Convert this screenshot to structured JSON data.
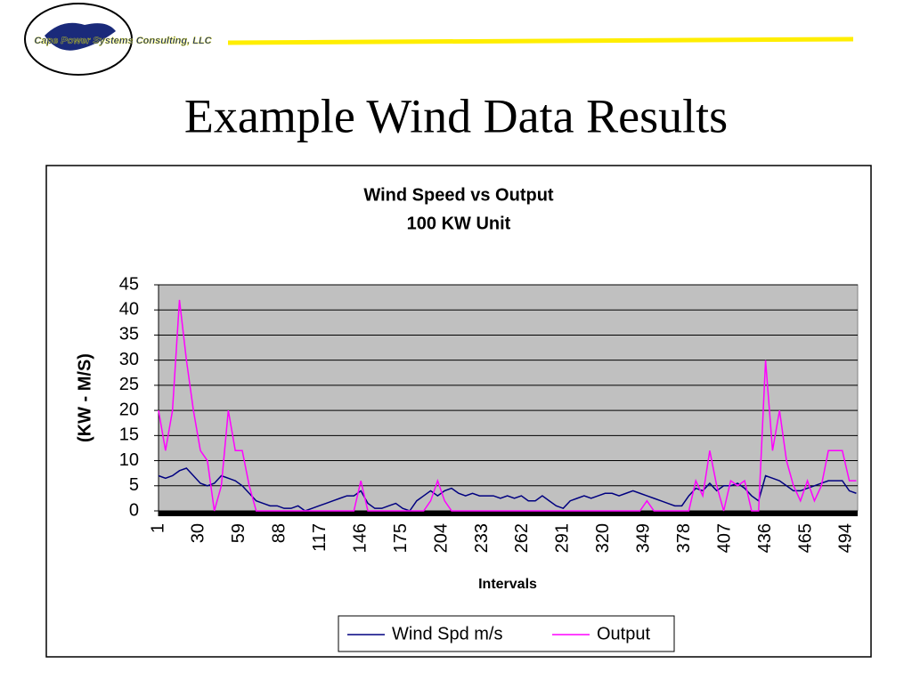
{
  "slide": {
    "logo_text": "Cape Power Systems Consulting, LLC",
    "title": "Example Wind Data Results"
  },
  "chart_data": {
    "type": "line",
    "title": "Wind Speed vs Output",
    "subtitle": "100 KW Unit",
    "x_label": "Intervals",
    "y_label": "(KW - M/S)",
    "x": [
      1,
      6,
      11,
      16,
      21,
      26,
      31,
      36,
      41,
      46,
      51,
      56,
      61,
      66,
      71,
      76,
      81,
      86,
      91,
      96,
      101,
      106,
      111,
      116,
      121,
      126,
      131,
      136,
      141,
      146,
      151,
      156,
      161,
      166,
      171,
      176,
      181,
      186,
      191,
      196,
      201,
      206,
      211,
      216,
      221,
      226,
      231,
      236,
      241,
      246,
      251,
      256,
      261,
      266,
      271,
      276,
      281,
      286,
      291,
      296,
      301,
      306,
      311,
      316,
      321,
      326,
      331,
      336,
      341,
      346,
      351,
      356,
      361,
      366,
      371,
      376,
      381,
      386,
      391,
      396,
      401,
      406,
      411,
      416,
      421,
      426,
      431,
      436,
      441,
      446,
      451,
      456,
      461,
      466,
      471,
      476,
      481,
      486,
      491,
      496,
      501
    ],
    "series": [
      {
        "name": "Wind Spd m/s",
        "color": "#000080",
        "values": [
          7,
          6.5,
          7,
          8,
          8.5,
          7,
          5.5,
          5,
          5.5,
          7,
          6.5,
          6,
          5,
          3.5,
          2,
          1.5,
          1,
          1,
          0.5,
          0.5,
          1,
          0,
          0.5,
          1,
          1.5,
          2,
          2.5,
          3,
          3,
          4,
          1.5,
          0.5,
          0.5,
          1,
          1.5,
          0.5,
          0,
          2,
          3,
          4,
          3,
          4,
          4.5,
          3.5,
          3,
          3.5,
          3,
          3,
          3,
          2.5,
          3,
          2.5,
          3,
          2,
          2,
          3,
          2,
          1,
          0.5,
          2,
          2.5,
          3,
          2.5,
          3,
          3.5,
          3.5,
          3,
          3.5,
          4,
          3.5,
          3,
          2.5,
          2,
          1.5,
          1,
          1,
          3,
          4.5,
          4,
          5.5,
          4,
          5,
          5,
          5.5,
          4.5,
          3,
          2,
          7,
          6.5,
          6,
          5,
          4,
          4,
          4.5,
          5,
          5.5,
          6,
          6,
          6,
          4,
          3.5
        ]
      },
      {
        "name": "Output",
        "color": "#ff00ff",
        "values": [
          20,
          12,
          20,
          42,
          30,
          20,
          12,
          10,
          0,
          5,
          20,
          12,
          12,
          5,
          0,
          0,
          0,
          0,
          0,
          0,
          0,
          0,
          0,
          0,
          0,
          0,
          0,
          0,
          0,
          6,
          0,
          0,
          0,
          0,
          0,
          0,
          0,
          0,
          0,
          2,
          6,
          2,
          0,
          0,
          0,
          0,
          0,
          0,
          0,
          0,
          0,
          0,
          0,
          0,
          0,
          0,
          0,
          0,
          0,
          0,
          0,
          0,
          0,
          0,
          0,
          0,
          0,
          0,
          0,
          0,
          2,
          0,
          0,
          0,
          0,
          0,
          0,
          6,
          3,
          12,
          5,
          0,
          6,
          5,
          6,
          0,
          0,
          30,
          12,
          20,
          10,
          5,
          2,
          6,
          2,
          5,
          12,
          12,
          12,
          6,
          6
        ]
      }
    ],
    "xlim": [
      1,
      502
    ],
    "xticks": [
      1,
      30,
      59,
      88,
      117,
      146,
      175,
      204,
      233,
      262,
      291,
      320,
      349,
      378,
      407,
      436,
      465,
      494
    ],
    "ylim": [
      0,
      45
    ],
    "yticks": [
      0,
      5,
      10,
      15,
      20,
      25,
      30,
      35,
      40,
      45
    ],
    "grid": true,
    "plot_background": "#c0c0c0",
    "legend": "bottom"
  }
}
